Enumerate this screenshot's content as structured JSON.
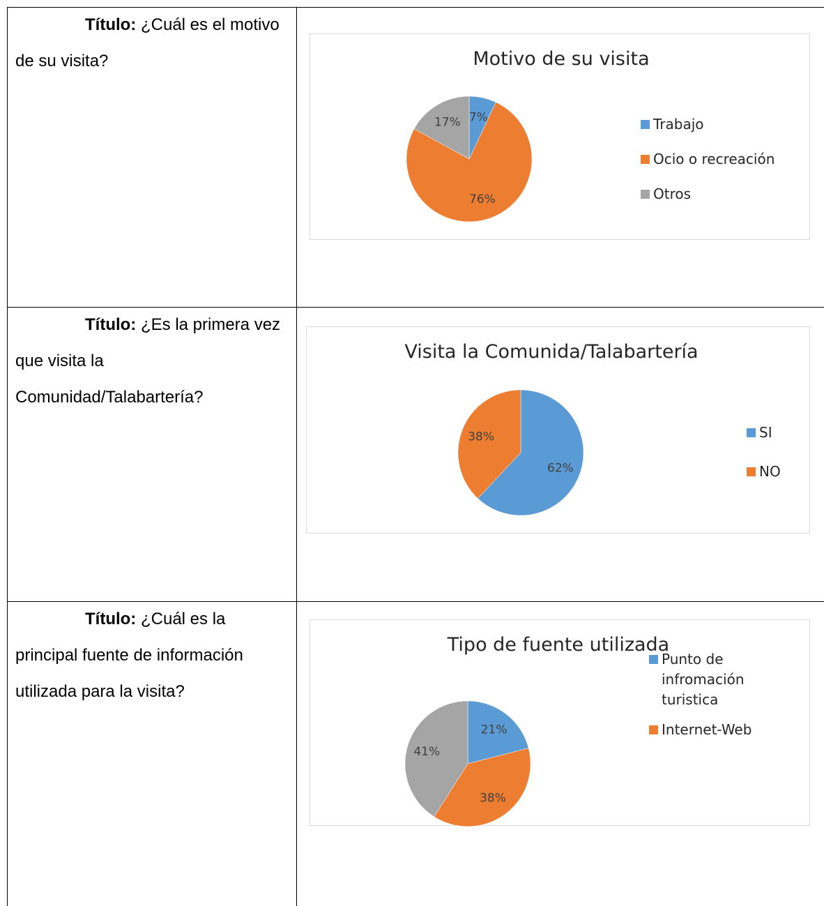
{
  "rows": [
    {
      "label": "Título:",
      "question": "¿Cuál es el motivo de su visita?",
      "chart": {
        "type": "pie",
        "title": "Motivo de su visita",
        "categories": [
          "Trabajo",
          "Ocio o recreación",
          "Otros"
        ],
        "values": [
          7,
          76,
          17
        ],
        "value_labels": [
          "7%",
          "76%",
          "17%"
        ],
        "colors": [
          "#5b9bd5",
          "#ed7d31",
          "#a5a5a5"
        ]
      }
    },
    {
      "label": "Título:",
      "question": "¿Es la primera vez que visita la Comunidad/Talabartería?",
      "chart": {
        "type": "pie",
        "title": "Visita la Comunida/Talabartería",
        "categories": [
          "SI",
          "NO"
        ],
        "values": [
          62,
          38
        ],
        "value_labels": [
          "62%",
          "38%"
        ],
        "colors": [
          "#5b9bd5",
          "#ed7d31"
        ]
      }
    },
    {
      "label": "Título:",
      "question": "¿Cuál es la principal fuente de información utilizada para la visita?",
      "chart": {
        "type": "pie",
        "title": "Tipo de fuente utilizada",
        "categories": [
          "Punto de infromación turistica",
          "Internet-Web",
          null
        ],
        "values": [
          21,
          38,
          41
        ],
        "value_labels": [
          "21%",
          "38%",
          "41%"
        ],
        "colors": [
          "#5b9bd5",
          "#ed7d31",
          "#a5a5a5"
        ]
      }
    }
  ]
}
